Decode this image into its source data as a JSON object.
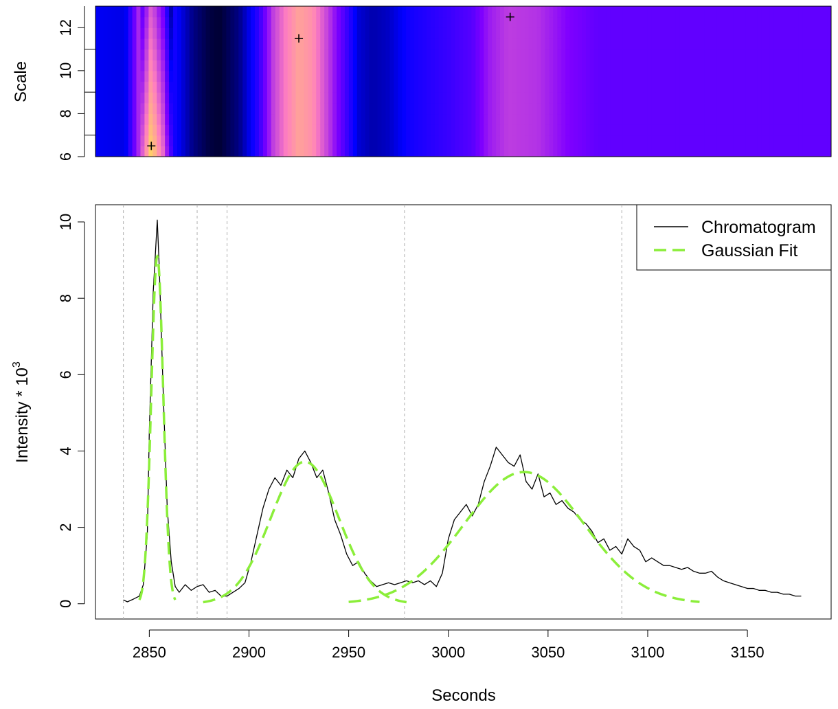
{
  "chart_data": [
    {
      "type": "heatmap",
      "ylabel": "Scale",
      "xlim": [
        2823,
        3192
      ],
      "ylim": [
        6,
        13
      ],
      "yticks": [
        6,
        8,
        10,
        12
      ],
      "ytick_labels": [
        "6",
        "8",
        "10",
        "12"
      ],
      "minor_yticks": [
        7,
        9,
        11
      ],
      "colormap": [
        "#000033",
        "#0000ff",
        "#8000ff",
        "#ff7fbf",
        "#ffff33"
      ],
      "color_profile": {
        "x": [
          2823,
          2838,
          2845,
          2851,
          2857,
          2862,
          2872,
          2880,
          2885,
          2895,
          2905,
          2912,
          2918,
          2925,
          2932,
          2940,
          2946,
          2955,
          2962,
          2970,
          2980,
          2992,
          3000,
          3012,
          3020,
          3030,
          3045,
          3060,
          3075,
          3192
        ],
        "value": [
          0.24,
          0.22,
          0.6,
          0.92,
          0.7,
          0.3,
          0.1,
          0.02,
          0.0,
          0.1,
          0.35,
          0.62,
          0.74,
          0.82,
          0.78,
          0.62,
          0.45,
          0.2,
          0.15,
          0.18,
          0.28,
          0.33,
          0.36,
          0.42,
          0.55,
          0.62,
          0.6,
          0.5,
          0.44,
          0.44
        ]
      },
      "peak_markers": [
        {
          "x": 2851,
          "y": 6.5
        },
        {
          "x": 2925,
          "y": 11.5
        },
        {
          "x": 3031,
          "y": 12.5
        }
      ]
    },
    {
      "type": "line",
      "xlabel": "Seconds",
      "ylabel": "Intensity * 10",
      "ylabel_superscript": "3",
      "xlim": [
        2823,
        3192
      ],
      "ylim": [
        -0.4,
        10.45
      ],
      "xticks": [
        2850,
        2900,
        2950,
        3000,
        3050,
        3100,
        3150
      ],
      "xtick_labels": [
        "2850",
        "2900",
        "2950",
        "3000",
        "3050",
        "3100",
        "3150"
      ],
      "yticks": [
        0,
        2,
        4,
        6,
        8,
        10
      ],
      "ytick_labels": [
        "0",
        "2",
        "4",
        "6",
        "8",
        "10"
      ],
      "boundary_lines_x": [
        2837,
        2874,
        2889,
        2978,
        3087
      ],
      "legend": {
        "position": "top-right",
        "entries": [
          "Chromatogram",
          "Gaussian Fit"
        ]
      },
      "series": [
        {
          "name": "Chromatogram",
          "color": "#000000",
          "x": [
            2837,
            2839,
            2842,
            2845,
            2847,
            2849,
            2850,
            2852,
            2854,
            2855,
            2857,
            2859,
            2861,
            2863,
            2865,
            2868,
            2871,
            2874,
            2877,
            2880,
            2883,
            2886,
            2889,
            2892,
            2895,
            2898,
            2901,
            2904,
            2907,
            2910,
            2913,
            2916,
            2919,
            2922,
            2925,
            2928,
            2931,
            2934,
            2937,
            2940,
            2943,
            2946,
            2949,
            2952,
            2955,
            2958,
            2961,
            2964,
            2967,
            2970,
            2973,
            2976,
            2979,
            2982,
            2985,
            2988,
            2991,
            2994,
            2997,
            3000,
            3003,
            3006,
            3009,
            3012,
            3015,
            3018,
            3021,
            3024,
            3027,
            3030,
            3033,
            3036,
            3039,
            3042,
            3045,
            3048,
            3051,
            3054,
            3057,
            3060,
            3063,
            3066,
            3069,
            3072,
            3075,
            3078,
            3081,
            3084,
            3087,
            3090,
            3093,
            3096,
            3099,
            3102,
            3105,
            3108,
            3111,
            3114,
            3117,
            3120,
            3123,
            3126,
            3129,
            3132,
            3135,
            3138,
            3141,
            3144,
            3147,
            3150,
            3153,
            3156,
            3159,
            3162,
            3165,
            3168,
            3171,
            3174,
            3177
          ],
          "y": [
            0.1,
            0.05,
            0.12,
            0.2,
            0.5,
            1.8,
            4.5,
            8.2,
            10.05,
            8.8,
            5.5,
            2.5,
            1.1,
            0.45,
            0.3,
            0.5,
            0.35,
            0.45,
            0.5,
            0.3,
            0.35,
            0.2,
            0.2,
            0.3,
            0.4,
            0.55,
            1.1,
            1.8,
            2.5,
            3.0,
            3.3,
            3.1,
            3.5,
            3.3,
            3.8,
            4.0,
            3.7,
            3.3,
            3.5,
            2.9,
            2.2,
            1.8,
            1.3,
            1.0,
            1.1,
            0.8,
            0.6,
            0.45,
            0.5,
            0.55,
            0.5,
            0.55,
            0.6,
            0.55,
            0.6,
            0.5,
            0.6,
            0.45,
            0.8,
            1.7,
            2.2,
            2.4,
            2.6,
            2.3,
            2.6,
            3.2,
            3.6,
            4.1,
            3.9,
            3.7,
            3.6,
            3.9,
            3.2,
            3.0,
            3.4,
            2.8,
            2.9,
            2.6,
            2.7,
            2.5,
            2.4,
            2.2,
            2.1,
            1.9,
            1.6,
            1.7,
            1.4,
            1.5,
            1.3,
            1.7,
            1.5,
            1.4,
            1.1,
            1.2,
            1.1,
            1.0,
            1.0,
            0.95,
            0.9,
            0.95,
            0.85,
            0.8,
            0.8,
            0.85,
            0.7,
            0.6,
            0.55,
            0.5,
            0.45,
            0.4,
            0.4,
            0.35,
            0.35,
            0.3,
            0.3,
            0.25,
            0.25,
            0.2,
            0.2
          ]
        },
        {
          "name": "Gaussian Fit",
          "color": "#8bee3a",
          "dashed": true,
          "components": [
            {
              "mu": 2854,
              "sigma": 3.0,
              "amp": 9.1,
              "range": [
                2845,
                2863
              ]
            },
            {
              "mu": 2928,
              "sigma": 17,
              "amp": 3.72,
              "range": [
                2877,
                2979
              ]
            },
            {
              "mu": 3038,
              "sigma": 30,
              "amp": 3.45,
              "range": [
                2950,
                3126
              ]
            }
          ]
        }
      ]
    }
  ]
}
